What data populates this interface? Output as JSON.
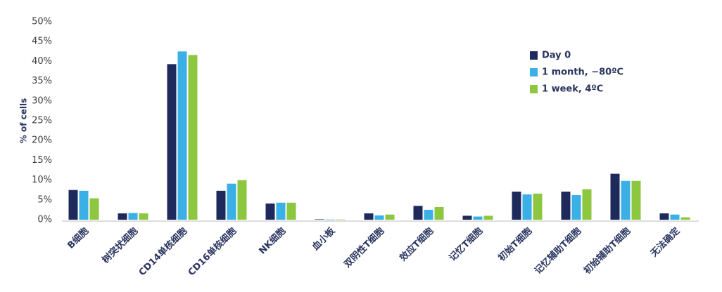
{
  "chart_data": {
    "type": "bar",
    "y_label": "% of cells",
    "categories": [
      "B细胞",
      "树突状细胞",
      "CD14单核细胞",
      "CD16单核细胞",
      "NK细胞",
      "血小板",
      "双阴性T细胞",
      "效应T细胞",
      "记忆T细胞",
      "初始T细胞",
      "记忆辅助T细胞",
      "初始辅助T细胞",
      "无法确定"
    ],
    "series": [
      {
        "name": "Day 0",
        "color": "#1f2a5c",
        "values": [
          7.5,
          1.6,
          39.3,
          7.3,
          4.1,
          0.1,
          1.6,
          3.5,
          1.0,
          7.1,
          7.1,
          11.6,
          1.6
        ]
      },
      {
        "name": "1 month, −80ºC",
        "color": "#3ab0e6",
        "values": [
          7.3,
          1.7,
          42.5,
          9.1,
          4.3,
          0.05,
          1.1,
          2.5,
          0.8,
          6.4,
          6.2,
          9.8,
          1.3
        ]
      },
      {
        "name": "1 week, 4ºC",
        "color": "#8dc63f",
        "values": [
          5.4,
          1.6,
          41.6,
          10.0,
          4.3,
          0.05,
          1.3,
          3.2,
          1.0,
          6.6,
          7.7,
          9.8,
          0.6
        ]
      }
    ],
    "ylim": [
      0,
      50
    ],
    "yticks": [
      {
        "value": 0,
        "label": "0%"
      },
      {
        "value": 5,
        "label": "5%"
      },
      {
        "value": 10,
        "label": "10%"
      },
      {
        "value": 15,
        "label": "15%"
      },
      {
        "value": 20,
        "label": "20%"
      },
      {
        "value": 25,
        "label": "25%"
      },
      {
        "value": 30,
        "label": "30%"
      },
      {
        "value": 35,
        "label": "35%"
      },
      {
        "value": 40,
        "label": "40%"
      },
      {
        "value": 45,
        "label": "45%"
      },
      {
        "value": 50,
        "label": "50%"
      }
    ]
  }
}
